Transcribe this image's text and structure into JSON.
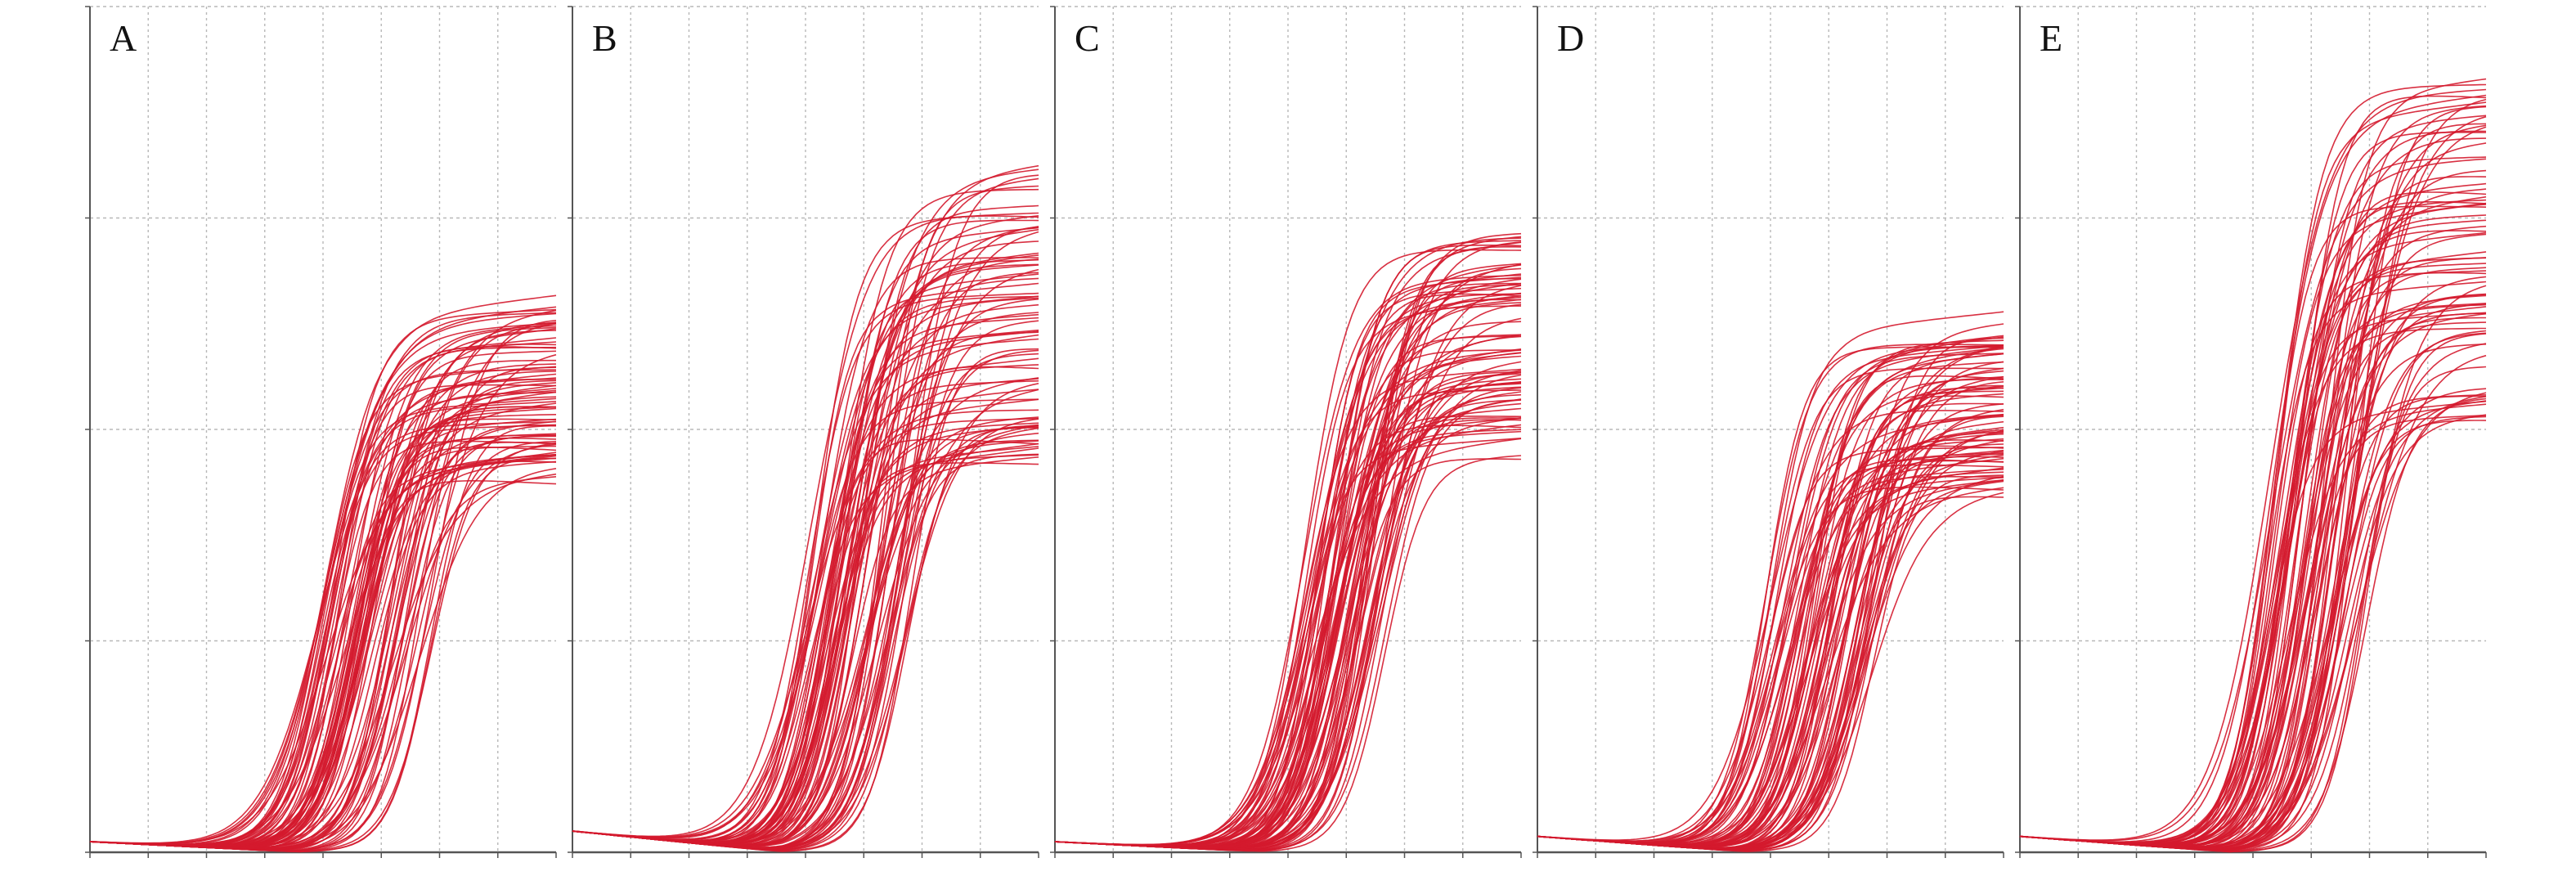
{
  "colors": {
    "curve": "#d4192e",
    "grid": "#b8b8b8",
    "axis": "#555555",
    "background": "#ffffff"
  },
  "chart_data": [
    {
      "type": "line",
      "panel": "A",
      "xlim": [
        0,
        40
      ],
      "ylim": [
        0,
        16
      ],
      "grid": true,
      "curve_count": 80,
      "plateau_range": [
        7.0,
        10.2
      ],
      "threshold_cycle_range": [
        19.5,
        29.5
      ],
      "baseline": 0.2
    },
    {
      "type": "line",
      "panel": "B",
      "xlim": [
        0,
        40
      ],
      "ylim": [
        0,
        16
      ],
      "grid": true,
      "curve_count": 80,
      "plateau_range": [
        7.2,
        13.0
      ],
      "threshold_cycle_range": [
        20.0,
        29.0
      ],
      "baseline": 0.4
    },
    {
      "type": "line",
      "panel": "C",
      "xlim": [
        0,
        40
      ],
      "ylim": [
        0,
        16
      ],
      "grid": true,
      "curve_count": 80,
      "plateau_range": [
        7.3,
        11.7
      ],
      "threshold_cycle_range": [
        21.0,
        28.5
      ],
      "baseline": 0.2
    },
    {
      "type": "line",
      "panel": "D",
      "xlim": [
        0,
        40
      ],
      "ylim": [
        0,
        16
      ],
      "grid": true,
      "curve_count": 80,
      "plateau_range": [
        6.7,
        9.9
      ],
      "threshold_cycle_range": [
        19.5,
        29.0
      ],
      "baseline": 0.3
    },
    {
      "type": "line",
      "panel": "E",
      "xlim": [
        0,
        40
      ],
      "ylim": [
        0,
        16
      ],
      "grid": true,
      "curve_count": 80,
      "plateau_range": [
        8.0,
        14.5
      ],
      "threshold_cycle_range": [
        21.0,
        30.0
      ],
      "baseline": 0.3
    }
  ],
  "labels": [
    "A",
    "B",
    "C",
    "D",
    "E"
  ]
}
